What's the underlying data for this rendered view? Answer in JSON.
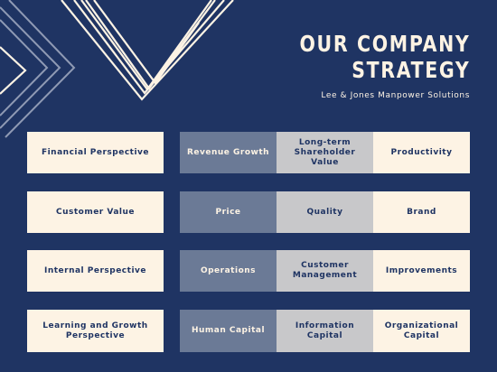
{
  "header": {
    "title_line1": "OUR COMPANY",
    "title_line2": "STRATEGY",
    "subtitle": "Lee & Jones Manpower Solutions"
  },
  "rows": [
    {
      "perspective": "Financial Perspective",
      "items": [
        "Revenue Growth",
        "Long-term Shareholder Value",
        "Productivity"
      ]
    },
    {
      "perspective": "Customer Value",
      "items": [
        "Price",
        "Quality",
        "Brand"
      ]
    },
    {
      "perspective": "Internal Perspective",
      "items": [
        "Operations",
        "Customer Management",
        "Improvements"
      ]
    },
    {
      "perspective": "Learning and Growth Perspective",
      "items": [
        "Human Capital",
        "Information Capital",
        "Organizational Capital"
      ]
    }
  ],
  "colors": {
    "background": "#1f3463",
    "cream": "#fdf3e4",
    "slate": "#6b7a96",
    "light_gray": "#c8c8ca"
  }
}
